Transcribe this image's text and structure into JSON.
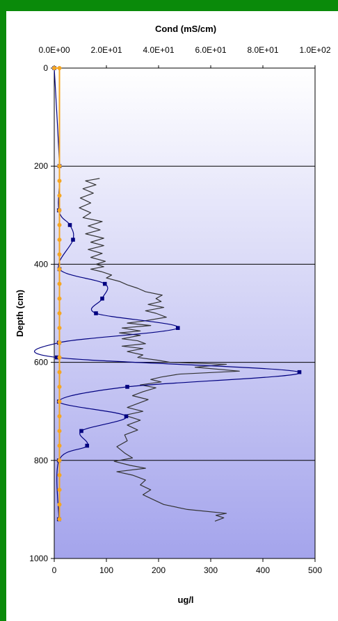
{
  "chart_data": {
    "type": "line",
    "title": "",
    "top_axis": {
      "label": "Cond (mS/cm)",
      "range": [
        0,
        100
      ],
      "ticks": [
        0,
        20,
        40,
        60,
        80,
        100
      ],
      "tick_labels": [
        "0.0E+00",
        "2.0E+01",
        "4.0E+01",
        "6.0E+01",
        "8.0E+01",
        "1.0E+02"
      ]
    },
    "x_axis": {
      "label": "ug/l",
      "range": [
        0,
        500
      ],
      "ticks": [
        0,
        100,
        200,
        300,
        400,
        500
      ],
      "tick_labels": [
        "0",
        "100",
        "200",
        "300",
        "400",
        "500"
      ]
    },
    "y_axis": {
      "label": "Depth (cm)",
      "range": [
        0,
        1000
      ],
      "inverted": true,
      "ticks": [
        0,
        200,
        400,
        600,
        800,
        1000
      ],
      "tick_labels": [
        "0",
        "200",
        "400",
        "600",
        "800",
        "1000"
      ]
    },
    "grid": "horizontal",
    "background_gradient": [
      "#ffffff",
      "#a4a4ec"
    ],
    "series": [
      {
        "axis": "top",
        "color": "#f5a623",
        "marker": "circle",
        "points": [
          [
            0,
            0
          ],
          [
            2,
            0
          ],
          [
            2,
            200
          ],
          [
            2,
            230
          ],
          [
            2,
            260
          ],
          [
            2,
            290
          ],
          [
            2,
            320
          ],
          [
            2,
            350
          ],
          [
            2,
            380
          ],
          [
            2,
            410
          ],
          [
            2,
            440
          ],
          [
            2,
            470
          ],
          [
            2,
            500
          ],
          [
            2,
            530
          ],
          [
            2,
            560
          ],
          [
            2,
            590
          ],
          [
            2,
            620
          ],
          [
            2,
            650
          ],
          [
            2,
            680
          ],
          [
            2,
            710
          ],
          [
            2,
            740
          ],
          [
            2,
            770
          ],
          [
            2,
            800
          ],
          [
            2,
            830
          ],
          [
            2,
            860
          ],
          [
            2,
            890
          ],
          [
            2,
            920
          ]
        ]
      },
      {
        "axis": "bottom",
        "color": "#000080",
        "marker": "square",
        "smooth": true,
        "points": [
          [
            0,
            0
          ],
          [
            10,
            200
          ],
          [
            9,
            290
          ],
          [
            30,
            320
          ],
          [
            36,
            350
          ],
          [
            10,
            410
          ],
          [
            97,
            440
          ],
          [
            92,
            470
          ],
          [
            80,
            500
          ],
          [
            237,
            530
          ],
          [
            9,
            560
          ],
          [
            5,
            590
          ],
          [
            470,
            620
          ],
          [
            140,
            650
          ],
          [
            9,
            680
          ],
          [
            138,
            710
          ],
          [
            52,
            740
          ],
          [
            63,
            770
          ],
          [
            9,
            800
          ],
          [
            9,
            920
          ]
        ]
      },
      {
        "axis": "bottom",
        "color": "#333333",
        "marker": "none",
        "points": [
          [
            87,
            225
          ],
          [
            60,
            230
          ],
          [
            80,
            238
          ],
          [
            55,
            246
          ],
          [
            75,
            255
          ],
          [
            50,
            265
          ],
          [
            70,
            275
          ],
          [
            48,
            285
          ],
          [
            70,
            295
          ],
          [
            55,
            305
          ],
          [
            92,
            313
          ],
          [
            65,
            322
          ],
          [
            88,
            330
          ],
          [
            60,
            338
          ],
          [
            95,
            347
          ],
          [
            70,
            355
          ],
          [
            95,
            362
          ],
          [
            65,
            370
          ],
          [
            92,
            378
          ],
          [
            70,
            386
          ],
          [
            98,
            394
          ],
          [
            80,
            400
          ],
          [
            95,
            405
          ],
          [
            70,
            410
          ],
          [
            90,
            415
          ],
          [
            110,
            422
          ],
          [
            100,
            428
          ],
          [
            125,
            435
          ],
          [
            140,
            442
          ],
          [
            160,
            449
          ],
          [
            175,
            456
          ],
          [
            207,
            463
          ],
          [
            195,
            470
          ],
          [
            205,
            476
          ],
          [
            180,
            482
          ],
          [
            210,
            488
          ],
          [
            175,
            495
          ],
          [
            195,
            500
          ],
          [
            215,
            508
          ],
          [
            170,
            516
          ],
          [
            140,
            520
          ],
          [
            185,
            525
          ],
          [
            130,
            530
          ],
          [
            165,
            536
          ],
          [
            125,
            540
          ],
          [
            165,
            545
          ],
          [
            130,
            552
          ],
          [
            160,
            556
          ],
          [
            175,
            562
          ],
          [
            130,
            567
          ],
          [
            170,
            572
          ],
          [
            140,
            578
          ],
          [
            170,
            585
          ],
          [
            160,
            590
          ],
          [
            200,
            596
          ],
          [
            222,
            600
          ],
          [
            330,
            604
          ],
          [
            270,
            610
          ],
          [
            355,
            618
          ],
          [
            240,
            624
          ],
          [
            205,
            630
          ],
          [
            185,
            635
          ],
          [
            205,
            640
          ],
          [
            165,
            646
          ],
          [
            195,
            652
          ],
          [
            170,
            660
          ],
          [
            150,
            668
          ],
          [
            180,
            676
          ],
          [
            160,
            684
          ],
          [
            140,
            692
          ],
          [
            170,
            700
          ],
          [
            135,
            708
          ],
          [
            165,
            718
          ],
          [
            140,
            728
          ],
          [
            160,
            738
          ],
          [
            135,
            748
          ],
          [
            140,
            760
          ],
          [
            120,
            772
          ],
          [
            135,
            785
          ],
          [
            150,
            795
          ],
          [
            115,
            802
          ],
          [
            145,
            810
          ],
          [
            175,
            816
          ],
          [
            120,
            823
          ],
          [
            150,
            830
          ],
          [
            175,
            840
          ],
          [
            165,
            850
          ],
          [
            185,
            860
          ],
          [
            170,
            870
          ],
          [
            190,
            880
          ],
          [
            210,
            890
          ],
          [
            255,
            900
          ],
          [
            330,
            908
          ],
          [
            310,
            912
          ],
          [
            325,
            917
          ],
          [
            308,
            924
          ]
        ]
      }
    ]
  }
}
